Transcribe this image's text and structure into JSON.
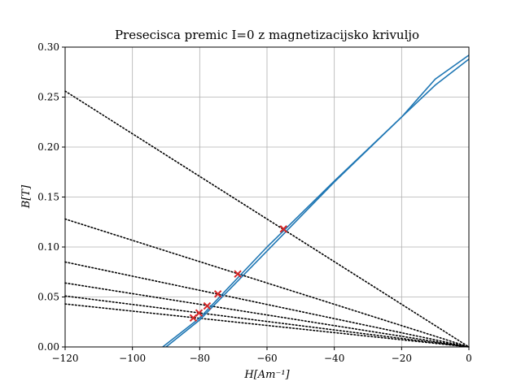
{
  "chart_data": {
    "type": "line",
    "title": "Presecisca premic I=0 z magnetizacijsko krivuljo",
    "xlabel": "H[Am⁻¹]",
    "ylabel": "B[T]",
    "xlim": [
      -120,
      0
    ],
    "ylim": [
      0,
      0.3
    ],
    "xticks": [
      -120,
      -100,
      -80,
      -60,
      -40,
      -20,
      0
    ],
    "xtick_labels": [
      "−120",
      "−100",
      "−80",
      "−60",
      "−40",
      "−20",
      "0"
    ],
    "yticks": [
      0.0,
      0.05,
      0.1,
      0.15,
      0.2,
      0.25,
      0.3
    ],
    "ytick_labels": [
      "0.00",
      "0.05",
      "0.10",
      "0.15",
      "0.20",
      "0.25",
      "0.30"
    ],
    "grid": true,
    "colors": {
      "curve": "#1f77b4",
      "load_lines": "#000000",
      "intersections": "#d62728",
      "grid": "#b0b0b0"
    },
    "curve_series": [
      {
        "x": [
          -91,
          -80,
          -60,
          -40,
          -20,
          -10,
          0
        ],
        "y": [
          0.0,
          0.029,
          0.1,
          0.166,
          0.23,
          0.268,
          0.292
        ]
      },
      {
        "x": [
          -90,
          -80,
          -60,
          -40,
          -20,
          -10,
          0
        ],
        "y": [
          0.0,
          0.027,
          0.096,
          0.165,
          0.23,
          0.262,
          0.288
        ]
      }
    ],
    "load_lines": [
      {
        "x": [
          -120,
          0
        ],
        "y": [
          0.256,
          0.0
        ]
      },
      {
        "x": [
          -120,
          0
        ],
        "y": [
          0.128,
          0.0
        ]
      },
      {
        "x": [
          -120,
          0
        ],
        "y": [
          0.085,
          0.0
        ]
      },
      {
        "x": [
          -120,
          0
        ],
        "y": [
          0.064,
          0.0
        ]
      },
      {
        "x": [
          -120,
          0
        ],
        "y": [
          0.051,
          0.0
        ]
      },
      {
        "x": [
          -120,
          0
        ],
        "y": [
          0.043,
          0.0
        ]
      }
    ],
    "intersections": {
      "x": [
        -55.1,
        -68.7,
        -74.6,
        -77.8,
        -80.2,
        -81.9
      ],
      "y": [
        0.118,
        0.073,
        0.053,
        0.041,
        0.034,
        0.029
      ]
    }
  }
}
